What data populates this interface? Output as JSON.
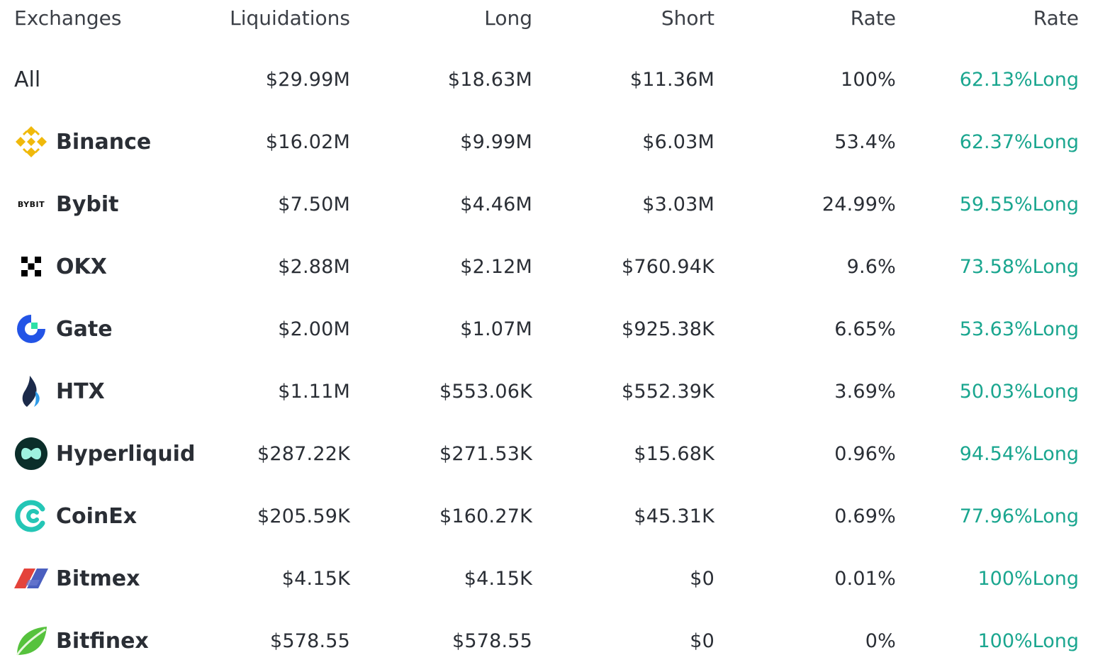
{
  "headers": {
    "exchanges": "Exchanges",
    "liquidations": "Liquidations",
    "long": "Long",
    "short": "Short",
    "rate": "Rate",
    "ratio": "Rate"
  },
  "rows": [
    {
      "name": "All",
      "liquidations": "$29.99M",
      "long": "$18.63M",
      "short": "$11.36M",
      "rate": "100%",
      "ratio": "62.13%Long"
    },
    {
      "name": "Binance",
      "icon": "binance-logo-icon",
      "liquidations": "$16.02M",
      "long": "$9.99M",
      "short": "$6.03M",
      "rate": "53.4%",
      "ratio": "62.37%Long"
    },
    {
      "name": "Bybit",
      "icon": "bybit-logo-icon",
      "logo_text": "BYBIT",
      "liquidations": "$7.50M",
      "long": "$4.46M",
      "short": "$3.03M",
      "rate": "24.99%",
      "ratio": "59.55%Long"
    },
    {
      "name": "OKX",
      "icon": "okx-logo-icon",
      "liquidations": "$2.88M",
      "long": "$2.12M",
      "short": "$760.94K",
      "rate": "9.6%",
      "ratio": "73.58%Long"
    },
    {
      "name": "Gate",
      "icon": "gate-logo-icon",
      "liquidations": "$2.00M",
      "long": "$1.07M",
      "short": "$925.38K",
      "rate": "6.65%",
      "ratio": "53.63%Long"
    },
    {
      "name": "HTX",
      "icon": "htx-logo-icon",
      "liquidations": "$1.11M",
      "long": "$553.06K",
      "short": "$552.39K",
      "rate": "3.69%",
      "ratio": "50.03%Long"
    },
    {
      "name": "Hyperliquid",
      "icon": "hyperliquid-logo-icon",
      "liquidations": "$287.22K",
      "long": "$271.53K",
      "short": "$15.68K",
      "rate": "0.96%",
      "ratio": "94.54%Long"
    },
    {
      "name": "CoinEx",
      "icon": "coinex-logo-icon",
      "liquidations": "$205.59K",
      "long": "$160.27K",
      "short": "$45.31K",
      "rate": "0.69%",
      "ratio": "77.96%Long"
    },
    {
      "name": "Bitmex",
      "icon": "bitmex-logo-icon",
      "liquidations": "$4.15K",
      "long": "$4.15K",
      "short": "$0",
      "rate": "0.01%",
      "ratio": "100%Long"
    },
    {
      "name": "Bitfinex",
      "icon": "bitfinex-logo-icon",
      "liquidations": "$578.55",
      "long": "$578.55",
      "short": "$0",
      "rate": "0%",
      "ratio": "100%Long"
    }
  ],
  "colors": {
    "long_ratio": "#1aa68f",
    "binance": "#f0b90b",
    "gate": "#2354e6",
    "hyperliquid": "#0b2e2a",
    "coinex": "#24c6b6",
    "bitmex_red": "#e4433b",
    "bitmex_blue": "#4a5fbf",
    "bitfinex": "#56c23d"
  }
}
